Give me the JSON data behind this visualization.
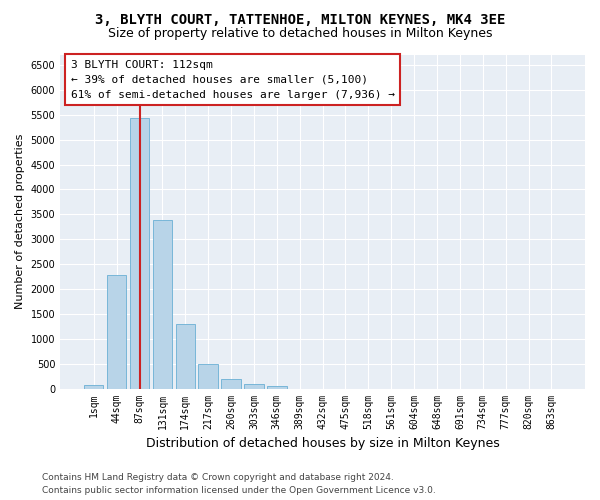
{
  "title1": "3, BLYTH COURT, TATTENHOE, MILTON KEYNES, MK4 3EE",
  "title2": "Size of property relative to detached houses in Milton Keynes",
  "xlabel": "Distribution of detached houses by size in Milton Keynes",
  "ylabel": "Number of detached properties",
  "categories": [
    "1sqm",
    "44sqm",
    "87sqm",
    "131sqm",
    "174sqm",
    "217sqm",
    "260sqm",
    "303sqm",
    "346sqm",
    "389sqm",
    "432sqm",
    "475sqm",
    "518sqm",
    "561sqm",
    "604sqm",
    "648sqm",
    "691sqm",
    "734sqm",
    "777sqm",
    "820sqm",
    "863sqm"
  ],
  "values": [
    70,
    2280,
    5430,
    3380,
    1300,
    490,
    200,
    90,
    50,
    0,
    0,
    0,
    0,
    0,
    0,
    0,
    0,
    0,
    0,
    0,
    0
  ],
  "bar_color": "#b8d4e8",
  "bar_edge_color": "#6aafd4",
  "vline_x_idx": 2,
  "vline_color": "#cc2222",
  "annotation_line1": "3 BLYTH COURT: 112sqm",
  "annotation_line2": "← 39% of detached houses are smaller (5,100)",
  "annotation_line3": "61% of semi-detached houses are larger (7,936) →",
  "box_facecolor": "#ffffff",
  "box_edgecolor": "#cc2222",
  "ylim_max": 6700,
  "yticks": [
    0,
    500,
    1000,
    1500,
    2000,
    2500,
    3000,
    3500,
    4000,
    4500,
    5000,
    5500,
    6000,
    6500
  ],
  "axes_facecolor": "#e8eef5",
  "fig_facecolor": "#ffffff",
  "grid_color": "#ffffff",
  "footer1": "Contains HM Land Registry data © Crown copyright and database right 2024.",
  "footer2": "Contains public sector information licensed under the Open Government Licence v3.0.",
  "title1_fontsize": 10,
  "title2_fontsize": 9,
  "xlabel_fontsize": 9,
  "ylabel_fontsize": 8,
  "tick_fontsize": 7,
  "annotation_fontsize": 8,
  "footer_fontsize": 6.5
}
